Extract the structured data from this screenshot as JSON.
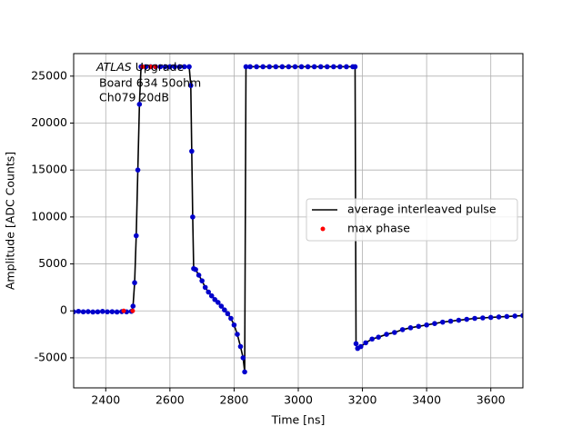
{
  "chart_data": {
    "type": "line",
    "xlabel": "Time [ns]",
    "ylabel": "Amplitude [ADC Counts]",
    "annotations": [
      "ATLAS",
      "Upgrade",
      "Board 634 50ohm",
      "Ch079 20dB"
    ],
    "xlim": [
      2300,
      3700
    ],
    "xticks": [
      2400,
      2600,
      2800,
      3000,
      3200,
      3400,
      3600
    ],
    "ylim": [
      -8200,
      27400
    ],
    "yticks": [
      -5000,
      0,
      5000,
      10000,
      15000,
      20000,
      25000
    ],
    "grid": true,
    "legend_loc": "center right",
    "series": [
      {
        "name": "average interleaved pulse",
        "color": "#000000",
        "marker_color": "#0000cc",
        "style": "line",
        "x": [
          2300,
          2315,
          2330,
          2345,
          2360,
          2375,
          2390,
          2405,
          2420,
          2435,
          2450,
          2465,
          2480,
          2485,
          2490,
          2495,
          2500,
          2505,
          2510,
          2525,
          2540,
          2555,
          2570,
          2585,
          2600,
          2615,
          2630,
          2645,
          2660,
          2665,
          2668,
          2671,
          2674,
          2680,
          2690,
          2700,
          2710,
          2720,
          2730,
          2740,
          2750,
          2760,
          2770,
          2780,
          2790,
          2800,
          2810,
          2820,
          2828,
          2833,
          2837,
          2850,
          2870,
          2890,
          2910,
          2930,
          2950,
          2970,
          2990,
          3010,
          3030,
          3050,
          3070,
          3090,
          3110,
          3130,
          3150,
          3170,
          3177,
          3180,
          3185,
          3195,
          3210,
          3230,
          3250,
          3275,
          3300,
          3325,
          3350,
          3375,
          3400,
          3425,
          3450,
          3475,
          3500,
          3525,
          3550,
          3575,
          3600,
          3625,
          3650,
          3675,
          3700
        ],
        "values": [
          -100,
          -50,
          -100,
          -80,
          -120,
          -100,
          -60,
          -100,
          -90,
          -120,
          -80,
          -100,
          -50,
          500,
          3000,
          8000,
          15000,
          22000,
          26000,
          26000,
          26000,
          26000,
          26000,
          26000,
          26000,
          26000,
          26000,
          26000,
          26000,
          24000,
          17000,
          10000,
          4500,
          4400,
          3800,
          3200,
          2500,
          2000,
          1600,
          1200,
          900,
          500,
          100,
          -300,
          -800,
          -1500,
          -2500,
          -3800,
          -5000,
          -6500,
          26000,
          26000,
          26000,
          26000,
          26000,
          26000,
          26000,
          26000,
          26000,
          26000,
          26000,
          26000,
          26000,
          26000,
          26000,
          26000,
          26000,
          26000,
          26000,
          -3500,
          -4000,
          -3800,
          -3400,
          -3000,
          -2800,
          -2500,
          -2300,
          -2000,
          -1800,
          -1650,
          -1500,
          -1350,
          -1200,
          -1100,
          -1000,
          -900,
          -800,
          -750,
          -700,
          -650,
          -600,
          -550,
          -500
        ]
      },
      {
        "name": "max phase",
        "color": "#ff0000",
        "style": "points",
        "x": [
          2456,
          2484,
          2515,
          2540,
          2555
        ],
        "values": [
          0,
          0,
          26000,
          26000,
          26000
        ]
      }
    ]
  }
}
